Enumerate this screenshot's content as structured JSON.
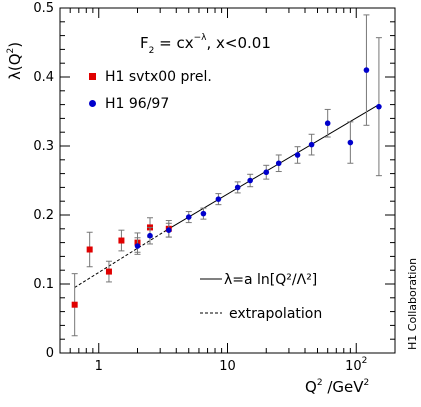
{
  "chart_data": {
    "type": "scatter",
    "title": "",
    "annotation": {
      "F": "F",
      "sub": "2",
      "eq": " = cx",
      "exp": "−λ",
      "cond": ",  x<0.01"
    },
    "xlabel": {
      "base": "Q",
      "sup": "2",
      "unit": " /GeV",
      "unit_sup": "2"
    },
    "ylabel": {
      "base": "λ(Q",
      "sup": "2",
      "close": ")"
    },
    "x_scale": "log",
    "xlim": [
      0.5,
      200
    ],
    "ylim": [
      0,
      0.5
    ],
    "x_ticks": [
      {
        "value": 1,
        "label": "1",
        "sup": ""
      },
      {
        "value": 10,
        "label": "10",
        "sup": ""
      },
      {
        "value": 100,
        "label": "10",
        "sup": "2"
      }
    ],
    "y_ticks": [
      {
        "value": 0,
        "label": "0"
      },
      {
        "value": 0.1,
        "label": "0.1"
      },
      {
        "value": 0.2,
        "label": "0.2"
      },
      {
        "value": 0.3,
        "label": "0.3"
      },
      {
        "value": 0.4,
        "label": "0.4"
      },
      {
        "value": 0.5,
        "label": "0.5"
      }
    ],
    "grid": false,
    "legend_position": "upper-left",
    "series": [
      {
        "name": "H1 svtx00 prel.",
        "marker": "square",
        "color": "#e00000",
        "points": [
          {
            "x": 0.65,
            "y": 0.07,
            "err": 0.045
          },
          {
            "x": 0.85,
            "y": 0.15,
            "err": 0.025
          },
          {
            "x": 1.2,
            "y": 0.118,
            "err": 0.015
          },
          {
            "x": 1.5,
            "y": 0.163,
            "err": 0.015
          },
          {
            "x": 2.0,
            "y": 0.16,
            "err": 0.014
          },
          {
            "x": 2.5,
            "y": 0.182,
            "err": 0.014
          },
          {
            "x": 3.5,
            "y": 0.18,
            "err": 0.012
          }
        ]
      },
      {
        "name": "H1 96/97",
        "marker": "circle",
        "color": "#0000cc",
        "points": [
          {
            "x": 2.0,
            "y": 0.155,
            "err": 0.012
          },
          {
            "x": 2.5,
            "y": 0.17,
            "err": 0.012
          },
          {
            "x": 3.5,
            "y": 0.178,
            "err": 0.01
          },
          {
            "x": 5.0,
            "y": 0.197,
            "err": 0.008
          },
          {
            "x": 6.5,
            "y": 0.202,
            "err": 0.008
          },
          {
            "x": 8.5,
            "y": 0.223,
            "err": 0.008
          },
          {
            "x": 12,
            "y": 0.24,
            "err": 0.008
          },
          {
            "x": 15,
            "y": 0.25,
            "err": 0.009
          },
          {
            "x": 20,
            "y": 0.262,
            "err": 0.01
          },
          {
            "x": 25,
            "y": 0.275,
            "err": 0.012
          },
          {
            "x": 35,
            "y": 0.287,
            "err": 0.012
          },
          {
            "x": 45,
            "y": 0.302,
            "err": 0.015
          },
          {
            "x": 60,
            "y": 0.333,
            "err": 0.02
          },
          {
            "x": 90,
            "y": 0.305,
            "err": 0.03
          },
          {
            "x": 120,
            "y": 0.41,
            "err": 0.08
          },
          {
            "x": 150,
            "y": 0.357,
            "err": 0.1
          }
        ]
      }
    ],
    "fit": {
      "name": "λ=a ln[Q²/Λ²]",
      "x_range": [
        3.5,
        150
      ],
      "y_range": [
        0.18,
        0.36
      ]
    },
    "extrapolation": {
      "name": "extrapolation",
      "x_range": [
        0.65,
        3.5
      ],
      "y_range": [
        0.095,
        0.18
      ]
    }
  },
  "side_label": "H1 Collaboration"
}
